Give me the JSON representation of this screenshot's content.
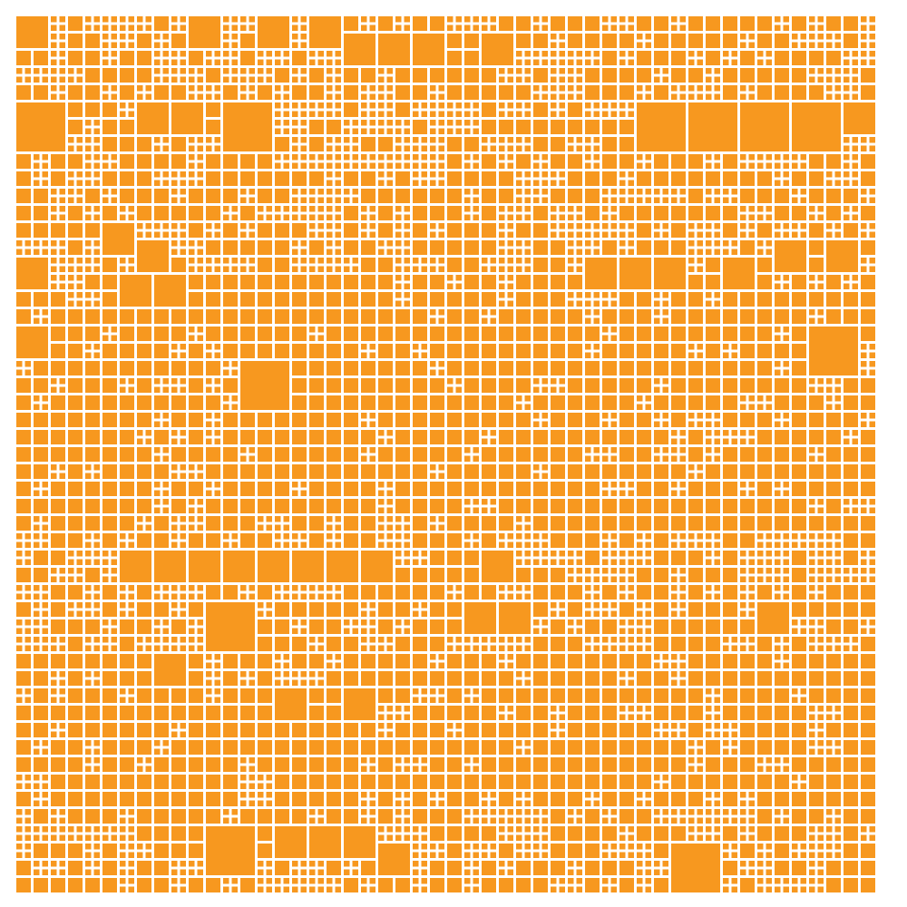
{
  "figure": {
    "type": "square-packing-mosaic",
    "background_color": "#ffffff",
    "tile_color": "#f7981f",
    "title": "",
    "text_labels": []
  }
}
